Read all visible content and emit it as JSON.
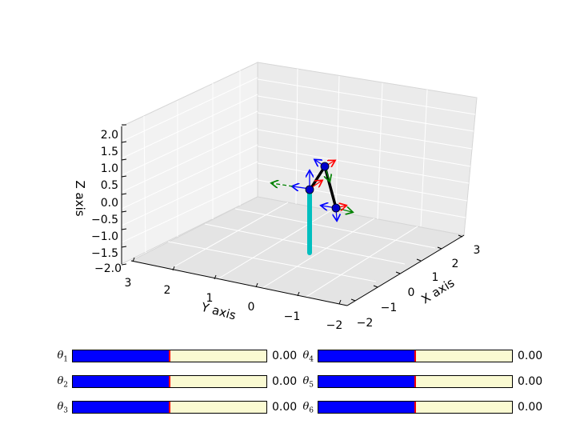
{
  "axes": {
    "x_label": "X axis",
    "y_label": "Y axis",
    "z_label": "Z axis",
    "x_ticks": [
      "−2",
      "−1",
      "0",
      "1",
      "2",
      "3"
    ],
    "y_ticks": [
      "3",
      "2",
      "1",
      "0",
      "−1",
      "−2"
    ],
    "z_ticks": [
      "2.0",
      "1.5",
      "1.0",
      "0.5",
      "0.0",
      "−0.5",
      "−1.0",
      "−1.5",
      "−2.0"
    ]
  },
  "colors": {
    "base_link": "#00bfbf",
    "arm_link": "#000000",
    "joint": "#0000cc",
    "frame_x": "#ff0000",
    "frame_y": "#008000",
    "frame_z": "#0000ff",
    "slider_fill": "#0000ff",
    "slider_track": "#fafad2"
  },
  "sliders": [
    {
      "symbol": "θ",
      "index": "1",
      "value": 0.0,
      "value_text": "0.00",
      "min": -3.14,
      "max": 3.14
    },
    {
      "symbol": "θ",
      "index": "2",
      "value": 0.0,
      "value_text": "0.00",
      "min": -3.14,
      "max": 3.14
    },
    {
      "symbol": "θ",
      "index": "3",
      "value": 0.0,
      "value_text": "0.00",
      "min": -3.14,
      "max": 3.14
    },
    {
      "symbol": "θ",
      "index": "4",
      "value": 0.0,
      "value_text": "0.00",
      "min": -3.14,
      "max": 3.14
    },
    {
      "symbol": "θ",
      "index": "5",
      "value": 0.0,
      "value_text": "0.00",
      "min": -3.14,
      "max": 3.14
    },
    {
      "symbol": "θ",
      "index": "6",
      "value": 0.0,
      "value_text": "0.00",
      "min": -3.14,
      "max": 3.14
    }
  ]
}
